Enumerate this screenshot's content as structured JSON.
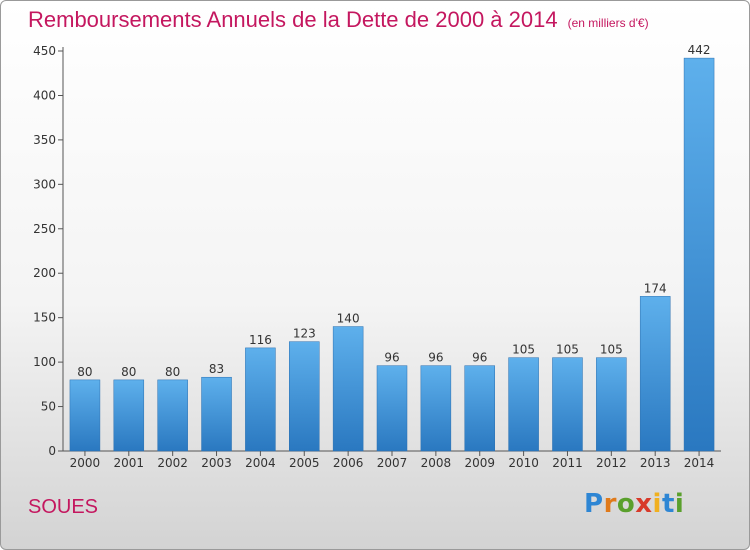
{
  "chart_data": {
    "type": "bar",
    "title": "Remboursements Annuels de la Dette de 2000 à 2014",
    "subtitle": "(en milliers d'€)",
    "categories": [
      "2000",
      "2001",
      "2002",
      "2003",
      "2004",
      "2005",
      "2006",
      "2007",
      "2008",
      "2009",
      "2010",
      "2011",
      "2012",
      "2013",
      "2014"
    ],
    "values": [
      80,
      80,
      80,
      83,
      116,
      123,
      140,
      96,
      96,
      96,
      105,
      105,
      105,
      174,
      442
    ],
    "ylim": [
      0,
      450
    ],
    "yticks": [
      0,
      50,
      100,
      150,
      200,
      250,
      300,
      350,
      400,
      450
    ],
    "grid": false,
    "legend": "none",
    "bar_color": "#4a9de0"
  },
  "location_label": "SOUES",
  "logo": {
    "letters": [
      "P",
      "r",
      "o",
      "x",
      "i",
      "t",
      "i"
    ],
    "colors": [
      "#2e86d4",
      "#e07a1a",
      "#5aa02c",
      "#d83a2a",
      "#f0b020",
      "#2e86d4",
      "#5aa02c"
    ]
  }
}
